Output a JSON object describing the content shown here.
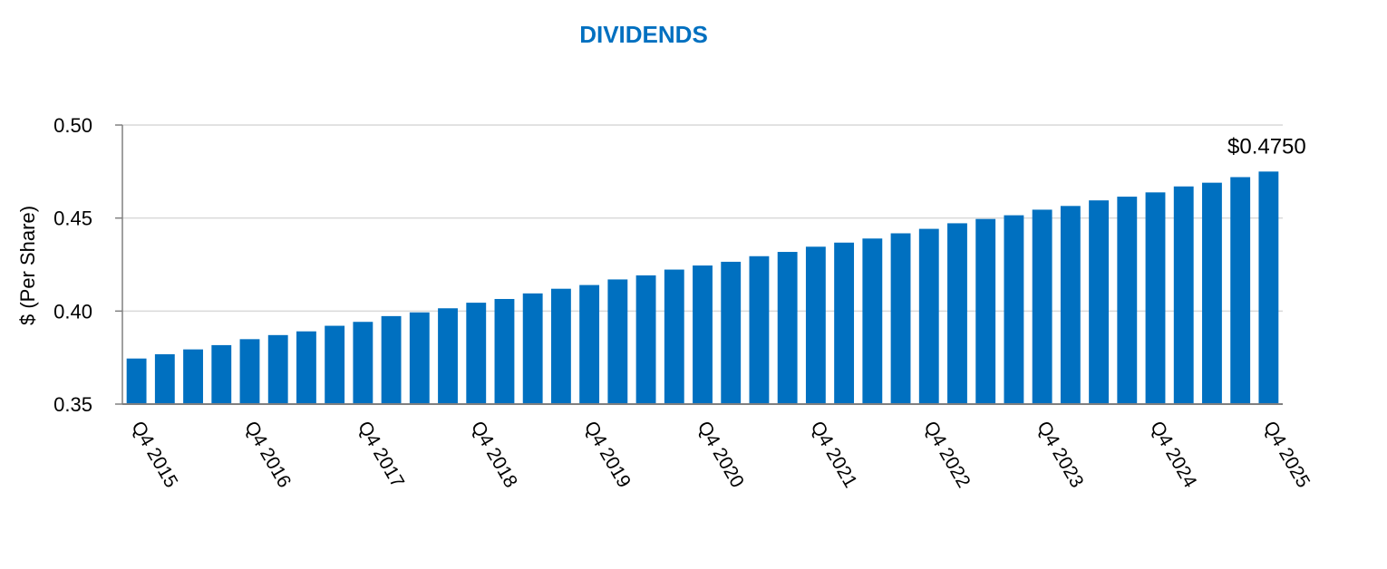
{
  "chart_data": {
    "type": "bar",
    "title": "DIVIDENDS",
    "ylabel": "$ (Per Share)",
    "xlabel": "",
    "ylim": [
      0.35,
      0.5
    ],
    "y_ticks": [
      "0.35",
      "0.40",
      "0.45",
      "0.50"
    ],
    "grid": true,
    "legend": "none",
    "colors": {
      "bar": "#0070C0",
      "title": "#0070C0",
      "grid": "#D9D9D9",
      "axis": "#808080"
    },
    "categories": [
      "Q4 2015",
      "Q1 2016",
      "Q2 2016",
      "Q3 2016",
      "Q4 2016",
      "Q1 2017",
      "Q2 2017",
      "Q3 2017",
      "Q4 2017",
      "Q1 2018",
      "Q2 2018",
      "Q3 2018",
      "Q4 2018",
      "Q1 2019",
      "Q2 2019",
      "Q3 2019",
      "Q4 2019",
      "Q1 2020",
      "Q2 2020",
      "Q3 2020",
      "Q4 2020",
      "Q1 2021",
      "Q2 2021",
      "Q3 2021",
      "Q4 2021",
      "Q1 2022",
      "Q2 2022",
      "Q3 2022",
      "Q4 2022",
      "Q1 2023",
      "Q2 2023",
      "Q3 2023",
      "Q4 2023",
      "Q1 2024",
      "Q2 2024",
      "Q3 2024",
      "Q4 2024",
      "Q1 2025",
      "Q2 2025",
      "Q3 2025",
      "Q4 2025"
    ],
    "x_tick_labels": [
      "Q4 2015",
      "Q4 2016",
      "Q4 2017",
      "Q4 2018",
      "Q4 2019",
      "Q4 2020",
      "Q4 2021",
      "Q4 2022",
      "Q4 2023",
      "Q4 2024",
      "Q4 2025"
    ],
    "values": [
      0.3745,
      0.3768,
      0.3794,
      0.3817,
      0.3849,
      0.3871,
      0.3891,
      0.3921,
      0.3942,
      0.3973,
      0.3993,
      0.4015,
      0.4045,
      0.4065,
      0.4095,
      0.412,
      0.414,
      0.417,
      0.4192,
      0.4223,
      0.4245,
      0.4265,
      0.4295,
      0.4318,
      0.4346,
      0.4368,
      0.439,
      0.4418,
      0.4442,
      0.4472,
      0.4495,
      0.4515,
      0.4545,
      0.4565,
      0.4595,
      0.4615,
      0.4638,
      0.467,
      0.469,
      0.472,
      0.475
    ],
    "annotations": [
      {
        "category": "Q4 2025",
        "text": "$0.4750"
      }
    ]
  }
}
